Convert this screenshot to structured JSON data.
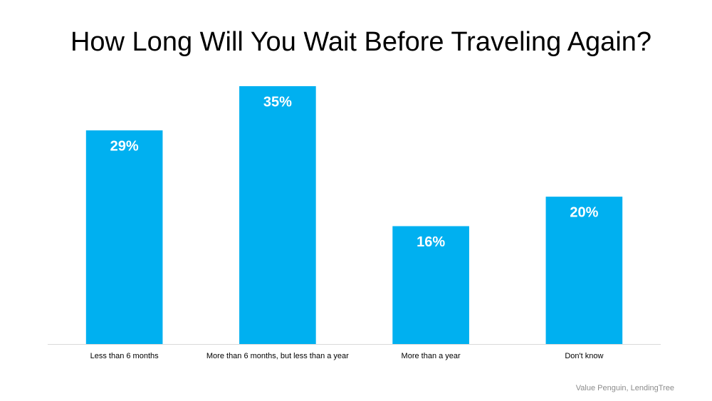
{
  "chart_data": {
    "type": "bar",
    "title": "How Long Will You Wait Before Traveling Again?",
    "categories": [
      "Less than 6 months",
      "More than 6 months, but less than a year",
      "More than a year",
      "Don't know"
    ],
    "values": [
      29,
      35,
      16,
      20
    ],
    "value_labels": [
      "29%",
      "35%",
      "16%",
      "20%"
    ],
    "color": "#00b0f0",
    "source": "Value Penguin, LendingTree"
  }
}
